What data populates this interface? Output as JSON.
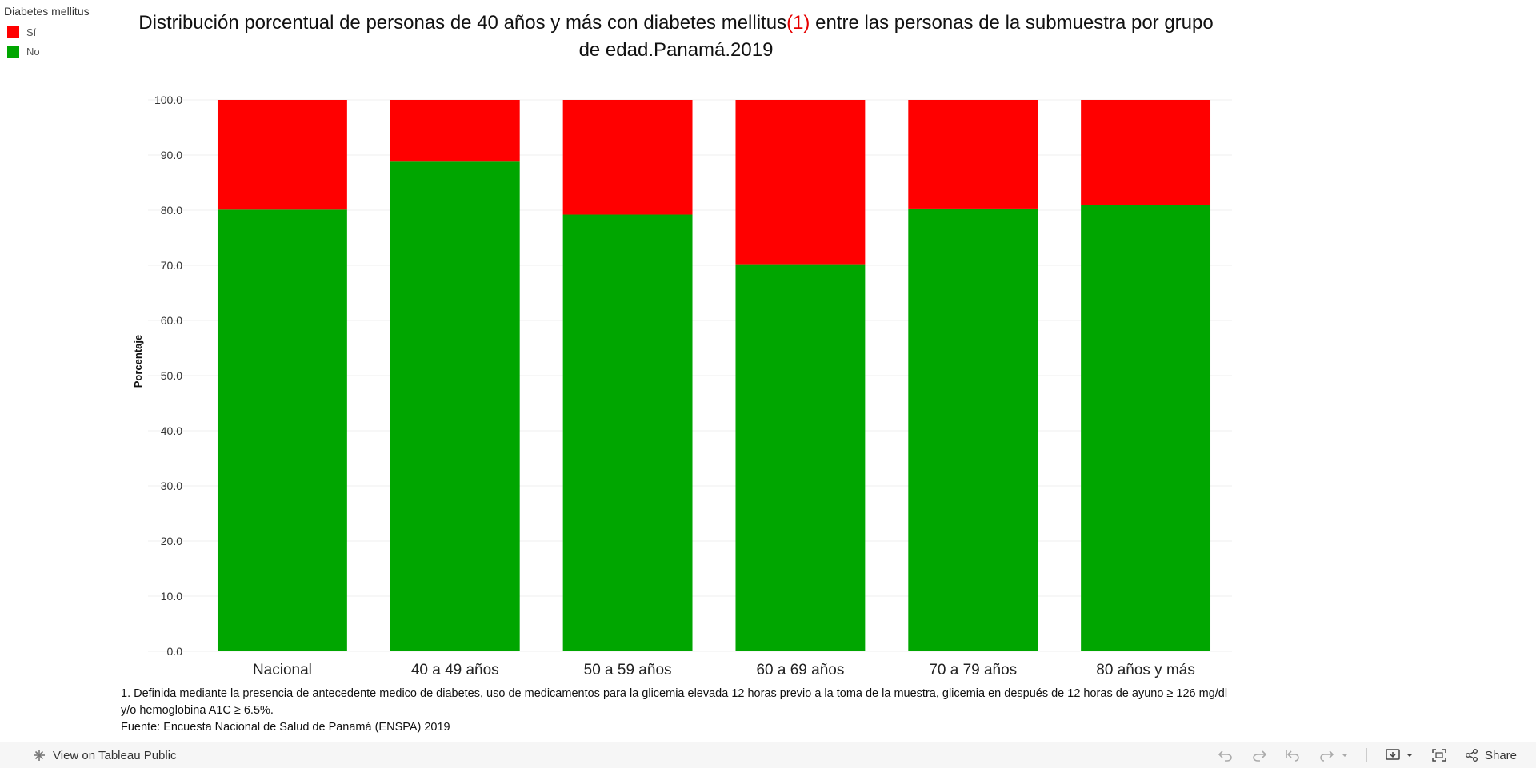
{
  "legend": {
    "title": "Diabetes mellitus",
    "items": [
      {
        "label": "Sí",
        "color": "#ff0000"
      },
      {
        "label": "No",
        "color": "#00a600"
      }
    ]
  },
  "title": {
    "part1": "Distribución porcentual de personas de 40 años y más con diabetes mellitus",
    "note": "(1)",
    "part2": " entre las personas de la submuestra por grupo de edad.Panamá.2019"
  },
  "chart_data": {
    "type": "bar",
    "stacked": true,
    "categories": [
      "Nacional",
      "40 a 49 años",
      "50 a 59 años",
      "60 a 69 años",
      "70 a 79 años",
      "80 años y más"
    ],
    "series": [
      {
        "name": "No",
        "color": "#00a600",
        "values": [
          80.1,
          88.8,
          79.2,
          70.2,
          80.3,
          81.0
        ]
      },
      {
        "name": "Sí",
        "color": "#ff0000",
        "values": [
          19.9,
          11.2,
          20.8,
          29.8,
          19.7,
          19.0
        ]
      }
    ],
    "ylabel": "Porcentaje",
    "ylim": [
      0,
      100
    ],
    "yticks": [
      "0.0",
      "10.0",
      "20.0",
      "30.0",
      "40.0",
      "50.0",
      "60.0",
      "70.0",
      "80.0",
      "90.0",
      "100.0"
    ],
    "grid": true,
    "legend_position": "top-left"
  },
  "footnote": {
    "line1": "1. Definida mediante la presencia de antecedente medico de diabetes, uso de medicamentos para la glicemia elevada 12 horas previo a la toma de la muestra, glicemia en después de 12 horas de ayuno ≥ 126 mg/dl y/o hemoglobina A1C ≥ 6.5%.",
    "line2": "Fuente: Encuesta Nacional de Salud de Panamá (ENSPA) 2019"
  },
  "toolbar": {
    "view_label": "View on Tableau Public",
    "share_label": "Share"
  }
}
